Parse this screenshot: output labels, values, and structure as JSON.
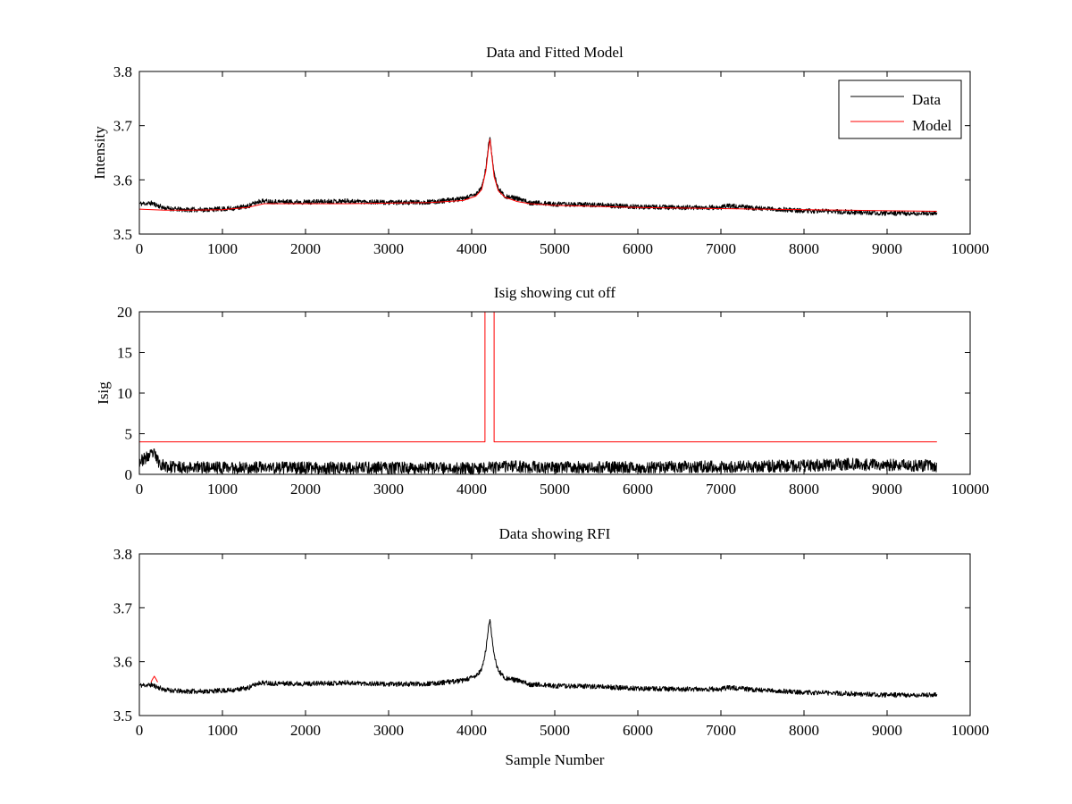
{
  "colors": {
    "data": "#000000",
    "model": "#ff0000",
    "cutoff": "#ff0000",
    "rfi": "#ff0000",
    "frame": "#000000"
  },
  "chart_data": [
    {
      "type": "line",
      "title": "Data and Fitted Model",
      "xlabel": "",
      "ylabel": "Intensity",
      "xlim": [
        0,
        10000
      ],
      "ylim": [
        3.5,
        3.8
      ],
      "xticks": [
        0,
        1000,
        2000,
        3000,
        4000,
        5000,
        6000,
        7000,
        8000,
        9000,
        10000
      ],
      "yticks": [
        3.5,
        3.6,
        3.7,
        3.8
      ],
      "xtick_labels": [
        "0",
        "1000",
        "2000",
        "3000",
        "4000",
        "5000",
        "6000",
        "7000",
        "8000",
        "9000",
        "10000"
      ],
      "ytick_labels": [
        "3.5",
        "3.6",
        "3.7",
        "3.8"
      ],
      "legend": {
        "position": "top-right",
        "entries": [
          "Data",
          "Model"
        ]
      },
      "series": [
        {
          "name": "Data",
          "color": "#000000",
          "kind": "noisy",
          "noise": 0.0045,
          "seed": 11,
          "x": [
            0,
            150,
            300,
            500,
            800,
            1100,
            1300,
            1450,
            1600,
            2000,
            2500,
            3000,
            3500,
            3900,
            4050,
            4120,
            4170,
            4200,
            4220,
            4240,
            4270,
            4320,
            4400,
            4550,
            4700,
            5000,
            5500,
            6000,
            6500,
            7000,
            7100,
            7500,
            8000,
            8500,
            9000,
            9600
          ],
          "y": [
            3.556,
            3.557,
            3.548,
            3.545,
            3.545,
            3.547,
            3.551,
            3.561,
            3.56,
            3.559,
            3.561,
            3.558,
            3.559,
            3.565,
            3.573,
            3.585,
            3.62,
            3.66,
            3.68,
            3.652,
            3.61,
            3.584,
            3.57,
            3.565,
            3.558,
            3.555,
            3.554,
            3.55,
            3.549,
            3.549,
            3.552,
            3.547,
            3.543,
            3.541,
            3.538,
            3.538
          ]
        },
        {
          "name": "Model",
          "color": "#ff0000",
          "kind": "smooth",
          "x": [
            0,
            300,
            600,
            1000,
            1300,
            1500,
            2000,
            2500,
            3000,
            3500,
            3900,
            4050,
            4120,
            4170,
            4200,
            4220,
            4240,
            4270,
            4320,
            4400,
            4550,
            4700,
            5000,
            5500,
            6000,
            6500,
            7000,
            7500,
            8000,
            8500,
            9000,
            9600
          ],
          "y": [
            3.546,
            3.544,
            3.544,
            3.545,
            3.549,
            3.556,
            3.556,
            3.556,
            3.557,
            3.558,
            3.562,
            3.57,
            3.582,
            3.616,
            3.655,
            3.675,
            3.648,
            3.606,
            3.58,
            3.568,
            3.56,
            3.556,
            3.553,
            3.551,
            3.549,
            3.548,
            3.547,
            3.546,
            3.545,
            3.544,
            3.543,
            3.542
          ]
        }
      ]
    },
    {
      "type": "line",
      "title": "Isig showing cut off",
      "xlabel": "",
      "ylabel": "Isig",
      "xlim": [
        0,
        10000
      ],
      "ylim": [
        0,
        20
      ],
      "xticks": [
        0,
        1000,
        2000,
        3000,
        4000,
        5000,
        6000,
        7000,
        8000,
        9000,
        10000
      ],
      "yticks": [
        0,
        5,
        10,
        15,
        20
      ],
      "xtick_labels": [
        "0",
        "1000",
        "2000",
        "3000",
        "4000",
        "5000",
        "6000",
        "7000",
        "8000",
        "9000",
        "10000"
      ],
      "ytick_labels": [
        "0",
        "5",
        "10",
        "15",
        "20"
      ],
      "series": [
        {
          "name": "Isig",
          "color": "#000000",
          "kind": "noisy",
          "noise": 0.75,
          "seed": 23,
          "clamp_min": 0,
          "x": [
            0,
            100,
            170,
            250,
            350,
            1000,
            2000,
            3000,
            4000,
            4500,
            5000,
            6000,
            7000,
            8000,
            8500,
            9000,
            9600
          ],
          "y": [
            1.6,
            2.1,
            2.6,
            1.3,
            0.9,
            0.85,
            0.8,
            0.8,
            0.75,
            0.95,
            0.85,
            0.9,
            0.95,
            1.05,
            1.25,
            1.15,
            1.05
          ]
        },
        {
          "name": "Cut off",
          "color": "#ff0000",
          "kind": "step",
          "x": [
            0,
            4160,
            4160,
            4270,
            4270,
            9600
          ],
          "y": [
            4,
            4,
            20,
            20,
            4,
            4
          ]
        }
      ]
    },
    {
      "type": "line",
      "title": "Data showing RFI",
      "xlabel": "Sample Number",
      "ylabel": "",
      "xlim": [
        0,
        10000
      ],
      "ylim": [
        3.5,
        3.8
      ],
      "xticks": [
        0,
        1000,
        2000,
        3000,
        4000,
        5000,
        6000,
        7000,
        8000,
        9000,
        10000
      ],
      "yticks": [
        3.5,
        3.6,
        3.7,
        3.8
      ],
      "xtick_labels": [
        "0",
        "1000",
        "2000",
        "3000",
        "4000",
        "5000",
        "6000",
        "7000",
        "8000",
        "9000",
        "10000"
      ],
      "ytick_labels": [
        "3.5",
        "3.6",
        "3.7",
        "3.8"
      ],
      "series": [
        {
          "name": "Data",
          "color": "#000000",
          "kind": "noisy",
          "noise": 0.0045,
          "seed": 11,
          "x": [
            0,
            150,
            300,
            500,
            800,
            1100,
            1300,
            1450,
            1600,
            2000,
            2500,
            3000,
            3500,
            3900,
            4050,
            4120,
            4170,
            4200,
            4220,
            4240,
            4270,
            4320,
            4400,
            4550,
            4700,
            5000,
            5500,
            6000,
            6500,
            7000,
            7100,
            7500,
            8000,
            8500,
            9000,
            9600
          ],
          "y": [
            3.556,
            3.557,
            3.548,
            3.545,
            3.545,
            3.547,
            3.551,
            3.561,
            3.56,
            3.559,
            3.561,
            3.558,
            3.559,
            3.565,
            3.573,
            3.585,
            3.62,
            3.66,
            3.68,
            3.652,
            3.61,
            3.584,
            3.57,
            3.565,
            3.558,
            3.555,
            3.554,
            3.55,
            3.549,
            3.549,
            3.552,
            3.547,
            3.543,
            3.541,
            3.538,
            3.538
          ]
        },
        {
          "name": "RFI",
          "color": "#ff0000",
          "kind": "smooth",
          "x": [
            140,
            160,
            180,
            200,
            220
          ],
          "y": [
            3.562,
            3.568,
            3.573,
            3.568,
            3.562
          ]
        }
      ]
    }
  ]
}
